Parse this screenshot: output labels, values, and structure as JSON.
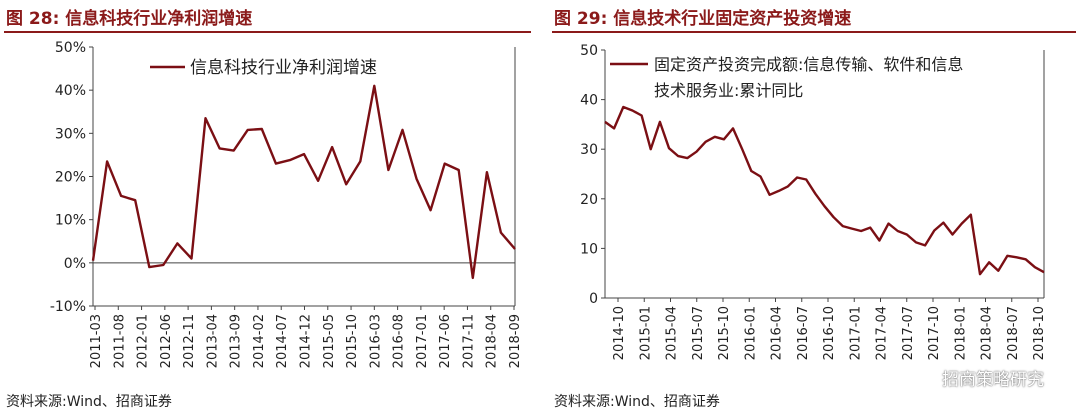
{
  "colors": {
    "line": "#7b0f14",
    "title": "#8b1a1a",
    "axis": "#444444"
  },
  "watermark": "招商策略研究",
  "chart_data": [
    {
      "type": "line",
      "title": "图 28:  信息科技行业净利润增速",
      "source": "资料来源:Wind、招商证券",
      "legend": "信息科技行业净利润增速",
      "legend_position": "top-center",
      "ylim": [
        -10,
        50
      ],
      "yticks": [
        "50%",
        "40%",
        "30%",
        "20%",
        "10%",
        "0%",
        "-10%"
      ],
      "ytick_values": [
        50,
        40,
        30,
        20,
        10,
        0,
        -10
      ],
      "tick_labels": [
        "2011-03",
        "2011-08",
        "2012-01",
        "2012-06",
        "2012-11",
        "2013-04",
        "2013-09",
        "2014-02",
        "2014-07",
        "2014-12",
        "2015-05",
        "2015-10",
        "2016-03",
        "2016-08",
        "2017-01",
        "2017-06",
        "2017-11",
        "2018-04",
        "2018-09"
      ],
      "x": [
        "2011-03",
        "2011-06",
        "2011-09",
        "2011-12",
        "2012-03",
        "2012-06",
        "2012-09",
        "2012-12",
        "2013-03",
        "2013-06",
        "2013-09",
        "2013-12",
        "2014-03",
        "2014-06",
        "2014-09",
        "2014-12",
        "2015-03",
        "2015-06",
        "2015-09",
        "2015-12",
        "2016-03",
        "2016-06",
        "2016-09",
        "2016-12",
        "2017-03",
        "2017-06",
        "2017-09",
        "2017-12",
        "2018-03",
        "2018-06",
        "2018-09"
      ],
      "values": [
        0.5,
        23.5,
        15.5,
        14.5,
        -1.0,
        -0.5,
        4.5,
        1.0,
        33.5,
        26.5,
        26.0,
        30.8,
        31.0,
        23.0,
        23.8,
        25.2,
        19.0,
        26.8,
        18.2,
        23.5,
        41.0,
        21.5,
        30.8,
        19.5,
        12.2,
        23.0,
        21.5,
        -3.5,
        21.0,
        7.0,
        3.2
      ]
    },
    {
      "type": "line",
      "title": "图 29:  信息技术行业固定资产投资增速",
      "source": "资料来源:Wind、招商证券",
      "legend_line1": "固定资产投资完成额:信息传输、软件和信息",
      "legend_line2": "技术服务业:累计同比",
      "legend_position": "top-right",
      "ylim": [
        0,
        50
      ],
      "yticks": [
        "50",
        "40",
        "30",
        "20",
        "10",
        "0"
      ],
      "ytick_values": [
        50,
        40,
        30,
        20,
        10,
        0
      ],
      "tick_labels": [
        "2014-10",
        "2015-01",
        "2015-04",
        "2015-07",
        "2015-10",
        "2016-01",
        "2016-04",
        "2016-07",
        "2016-10",
        "2017-01",
        "2017-04",
        "2017-07",
        "2017-10",
        "2018-01",
        "2018-04",
        "2018-07",
        "2018-10"
      ],
      "x": [
        "2014-10",
        "2014-11",
        "2014-12",
        "2015-01",
        "2015-02",
        "2015-03",
        "2015-04",
        "2015-05",
        "2015-06",
        "2015-07",
        "2015-08",
        "2015-09",
        "2015-10",
        "2015-11",
        "2015-12",
        "2016-01",
        "2016-02",
        "2016-03",
        "2016-04",
        "2016-05",
        "2016-06",
        "2016-07",
        "2016-08",
        "2016-09",
        "2016-10",
        "2016-11",
        "2016-12",
        "2017-01",
        "2017-02",
        "2017-03",
        "2017-04",
        "2017-05",
        "2017-06",
        "2017-07",
        "2017-08",
        "2017-09",
        "2017-10",
        "2017-11",
        "2017-12",
        "2018-01",
        "2018-02",
        "2018-03",
        "2018-04",
        "2018-05",
        "2018-06",
        "2018-07",
        "2018-08",
        "2018-09",
        "2018-10"
      ],
      "values": [
        35.5,
        34.2,
        38.5,
        37.8,
        36.8,
        30.0,
        35.5,
        30.2,
        28.6,
        28.2,
        29.5,
        31.5,
        32.5,
        32.0,
        34.2,
        30.0,
        25.6,
        24.5,
        20.8,
        21.6,
        22.5,
        24.3,
        23.9,
        21.0,
        18.5,
        16.3,
        14.5,
        14.0,
        13.5,
        14.2,
        11.6,
        15.0,
        13.5,
        12.8,
        11.2,
        10.6,
        13.6,
        15.2,
        12.8,
        15.0,
        16.8,
        4.8,
        7.2,
        5.5,
        8.5,
        8.2,
        7.8,
        6.2,
        5.2
      ]
    }
  ]
}
